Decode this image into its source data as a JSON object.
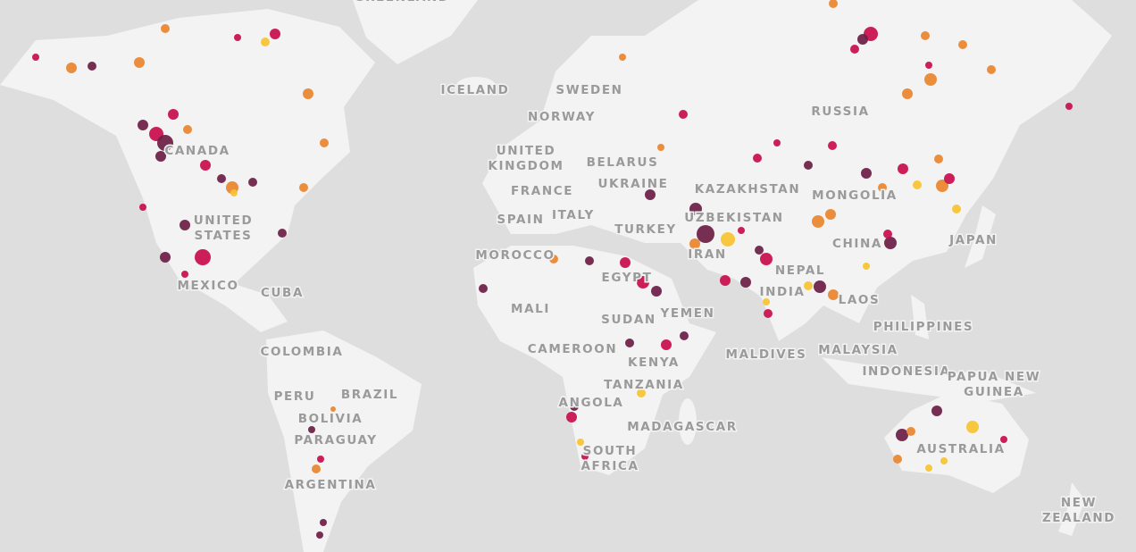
{
  "labels": [
    {
      "lines": [
        "GREENLAND"
      ]
    },
    {
      "lines": [
        "ICELAND"
      ]
    },
    {
      "lines": [
        "SWEDEN"
      ]
    },
    {
      "lines": [
        "NORWAY"
      ]
    },
    {
      "lines": [
        "RUSSIA"
      ]
    },
    {
      "lines": [
        "UNITED",
        "KINGDOM"
      ]
    },
    {
      "lines": [
        "BELARUS"
      ]
    },
    {
      "lines": [
        "UKRAINE"
      ]
    },
    {
      "lines": [
        "FRANCE"
      ]
    },
    {
      "lines": [
        "KAZAKHSTAN"
      ]
    },
    {
      "lines": [
        "MONGOLIA"
      ]
    },
    {
      "lines": [
        "SPAIN"
      ]
    },
    {
      "lines": [
        "ITALY"
      ]
    },
    {
      "lines": [
        "UZBEKISTAN"
      ]
    },
    {
      "lines": [
        "TURKEY"
      ]
    },
    {
      "lines": [
        "CHINA"
      ]
    },
    {
      "lines": [
        "JAPAN"
      ]
    },
    {
      "lines": [
        "MOROCCO"
      ]
    },
    {
      "lines": [
        "IRAN"
      ]
    },
    {
      "lines": [
        "EGYPT"
      ]
    },
    {
      "lines": [
        "NEPAL"
      ]
    },
    {
      "lines": [
        "INDIA"
      ]
    },
    {
      "lines": [
        "LAOS"
      ]
    },
    {
      "lines": [
        "MALI"
      ]
    },
    {
      "lines": [
        "SUDAN"
      ]
    },
    {
      "lines": [
        "YEMEN"
      ]
    },
    {
      "lines": [
        "PHILIPPINES"
      ]
    },
    {
      "lines": [
        "CAMEROON"
      ]
    },
    {
      "lines": [
        "KENYA"
      ]
    },
    {
      "lines": [
        "MALDIVES"
      ]
    },
    {
      "lines": [
        "MALAYSIA"
      ]
    },
    {
      "lines": [
        "INDONESIA"
      ]
    },
    {
      "lines": [
        "PAPUA NEW",
        "GUINEA"
      ]
    },
    {
      "lines": [
        "TANZANIA"
      ]
    },
    {
      "lines": [
        "ANGOLA"
      ]
    },
    {
      "lines": [
        "MADAGASCAR"
      ]
    },
    {
      "lines": [
        "SOUTH",
        "AFRICA"
      ]
    },
    {
      "lines": [
        "AUSTRALIA"
      ]
    },
    {
      "lines": [
        "NEW",
        "ZEALAND"
      ]
    },
    {
      "lines": [
        "CANADA"
      ]
    },
    {
      "lines": [
        "UNITED",
        "STATES"
      ]
    },
    {
      "lines": [
        "MEXICO"
      ]
    },
    {
      "lines": [
        "CUBA"
      ]
    },
    {
      "lines": [
        "COLOMBIA"
      ]
    },
    {
      "lines": [
        "PERU"
      ]
    },
    {
      "lines": [
        "BRAZIL"
      ]
    },
    {
      "lines": [
        "BOLIVIA"
      ]
    },
    {
      "lines": [
        "PARAGUAY"
      ]
    },
    {
      "lines": [
        "ARGENTINA"
      ]
    }
  ]
}
